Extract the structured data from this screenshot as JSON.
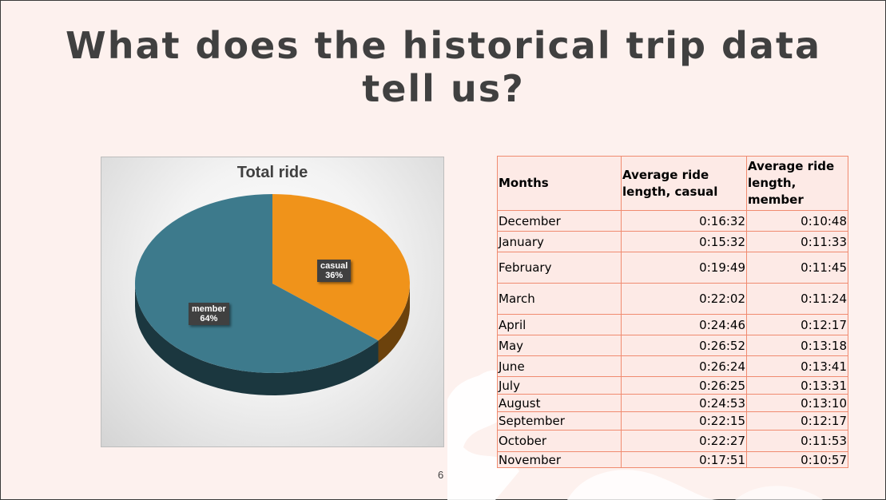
{
  "slide": {
    "title": "What does the historical trip data tell us?",
    "page_number": "6"
  },
  "chart_data": {
    "type": "pie",
    "title": "Total ride",
    "categories": [
      "casual",
      "member"
    ],
    "values": [
      36,
      64
    ],
    "labels": [
      "36%",
      "64%"
    ],
    "colors": [
      "#f0931a",
      "#3d7a8c"
    ]
  },
  "table": {
    "headers": [
      "Months",
      "Average ride length, casual",
      "Average ride length, member"
    ],
    "rows": [
      [
        "December",
        "0:16:32",
        "0:10:48"
      ],
      [
        "January",
        "0:15:32",
        "0:11:33"
      ],
      [
        "February",
        "0:19:49",
        "0:11:45"
      ],
      [
        "March",
        "0:22:02",
        "0:11:24"
      ],
      [
        "April",
        "0:24:46",
        "0:12:17"
      ],
      [
        "May",
        "0:26:52",
        "0:13:18"
      ],
      [
        "June",
        "0:26:24",
        "0:13:41"
      ],
      [
        "July",
        "0:26:25",
        "0:13:31"
      ],
      [
        "August",
        "0:24:53",
        "0:13:10"
      ],
      [
        "September",
        "0:22:15",
        "0:12:17"
      ],
      [
        "October",
        "0:22:27",
        "0:11:53"
      ],
      [
        "November",
        "0:17:51",
        "0:10:57"
      ]
    ]
  }
}
